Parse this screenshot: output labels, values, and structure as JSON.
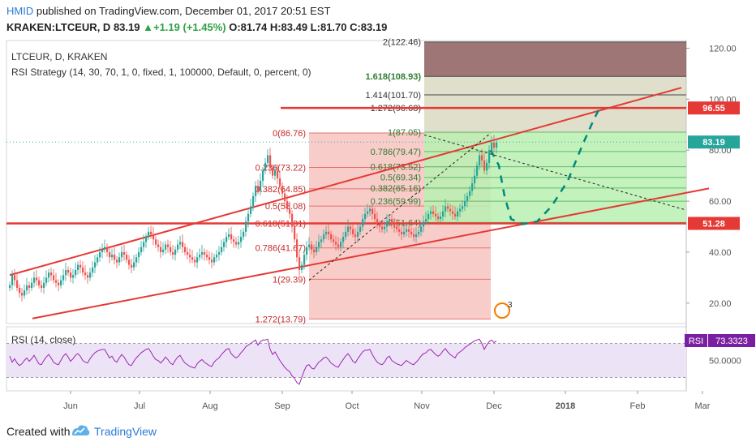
{
  "header": {
    "user": "HMID",
    "published_text": "published on TradingView.com, December 01, 2017 20:51 EST",
    "symbol": "KRAKEN:LTCEUR, D",
    "price": "83.19",
    "change": "+1.19 (+1.45%)",
    "ohlc": "O:81.74 H:83.49 L:81.70 C:83.19"
  },
  "legend": {
    "line1": "LTCEUR, D, KRAKEN",
    "line2": "RSI Strategy (14, 30, 70, 1, 0, fixed, 1, 100000, Default, 0, percent, 0)",
    "rsi_label": "RSI (14, close)"
  },
  "footer": {
    "created_with": "Created with",
    "brand": "TradingView"
  },
  "colors": {
    "candle_up": "#26a69a",
    "candle_down": "#ef5350",
    "trendline": "#e53935",
    "fib_red_fill": "#f8c9c5",
    "fib_green_fill": "#b8f0b1",
    "fib_dark_fill": "#8d5e5e",
    "rsi_line": "#9c27b0",
    "projection": "#00897b",
    "accent": "#2a7bd6"
  },
  "chart_data": [
    {
      "type": "candlestick",
      "title": "LTCEUR, D, KRAKEN",
      "x_ticks": [
        "Jun",
        "Jul",
        "Aug",
        "Sep",
        "Oct",
        "Nov",
        "Dec",
        "2018",
        "Feb",
        "Mar"
      ],
      "y_ticks": [
        "20.00",
        "40.00",
        "60.00",
        "80.00",
        "100.00",
        "120.00"
      ],
      "ylim": [
        12,
        123
      ],
      "last_price": "83.19",
      "horizontal_lines": [
        {
          "label": "96.55",
          "value": 96.55
        },
        {
          "label": "51.28",
          "value": 51.28
        }
      ],
      "fib_retracement_1": [
        {
          "label": "0(86.76)",
          "value": 86.76
        },
        {
          "label": "0.236(73.22)",
          "value": 73.22
        },
        {
          "label": "0.382(64.85)",
          "value": 64.85
        },
        {
          "label": "0.5(58.08)",
          "value": 58.08
        },
        {
          "label": "0.618(51.31)",
          "value": 51.31
        },
        {
          "label": "0.786(41.67)",
          "value": 41.67
        },
        {
          "label": "1(29.39)",
          "value": 29.39
        },
        {
          "label": "1.272(13.79)",
          "value": 13.79
        }
      ],
      "fib_retracement_2": [
        {
          "label": "2(122.46)",
          "value": 122.46
        },
        {
          "label": "1.618(108.93)",
          "value": 108.93
        },
        {
          "label": "1.414(101.70)",
          "value": 101.7
        },
        {
          "label": "1.272(96.68)",
          "value": 96.68
        },
        {
          "label": "1(87.05)",
          "value": 87.05
        },
        {
          "label": "0.786(79.47)",
          "value": 79.47
        },
        {
          "label": "0.618(73.52)",
          "value": 73.52
        },
        {
          "label": "0.5(69.34)",
          "value": 69.34
        },
        {
          "label": "0.382(65.16)",
          "value": 65.16
        },
        {
          "label": "0.236(59.99)",
          "value": 59.99
        },
        {
          "label": "0(51.64)",
          "value": 51.64
        }
      ],
      "price_series": [
        27,
        31,
        29,
        26,
        24,
        23,
        25,
        27,
        26,
        28,
        30,
        29,
        27,
        26,
        28,
        30,
        32,
        31,
        29,
        28,
        27,
        29,
        31,
        33,
        32,
        30,
        31,
        33,
        35,
        34,
        32,
        31,
        30,
        32,
        34,
        36,
        38,
        40,
        41,
        42,
        40,
        38,
        39,
        37,
        36,
        38,
        40,
        39,
        37,
        35,
        34,
        36,
        38,
        40,
        42,
        44,
        46,
        48,
        47,
        45,
        43,
        42,
        40,
        41,
        43,
        42,
        40,
        39,
        41,
        43,
        44,
        42,
        40,
        39,
        38,
        37,
        36,
        38,
        39,
        40,
        39,
        38,
        37,
        36,
        38,
        39,
        40,
        42,
        44,
        46,
        47,
        45,
        44,
        43,
        44,
        46,
        48,
        52,
        55,
        58,
        62,
        66,
        64,
        68,
        72,
        75,
        78,
        73,
        70,
        72,
        69,
        66,
        63,
        60,
        57,
        55,
        50,
        45,
        38,
        33,
        35,
        39,
        42,
        43,
        41,
        40,
        42,
        44,
        45,
        47,
        48,
        47,
        45,
        44,
        43,
        42,
        44,
        46,
        48,
        50,
        49,
        47,
        46,
        48,
        50,
        53,
        55,
        56,
        57,
        55,
        53,
        51,
        50,
        49,
        50,
        52,
        53,
        51,
        50,
        49,
        48,
        47,
        48,
        49,
        48,
        47,
        46,
        47,
        48,
        50,
        52,
        53,
        55,
        56,
        55,
        54,
        53,
        54,
        56,
        58,
        57,
        56,
        55,
        54,
        56,
        57,
        58,
        60,
        62,
        64,
        67,
        70,
        74,
        78,
        76,
        72,
        75,
        80,
        83,
        81,
        83
      ],
      "rsi_series": [
        55,
        48,
        52,
        47,
        44,
        46,
        50,
        53,
        49,
        52,
        56,
        51,
        46,
        45,
        50,
        54,
        57,
        53,
        48,
        46,
        45,
        50,
        55,
        58,
        54,
        49,
        52,
        56,
        58,
        55,
        50,
        48,
        47,
        52,
        56,
        59,
        61,
        62,
        63,
        63,
        58,
        53,
        55,
        50,
        48,
        53,
        57,
        54,
        49,
        45,
        44,
        49,
        53,
        56,
        59,
        61,
        63,
        64,
        60,
        55,
        51,
        50,
        47,
        50,
        54,
        51,
        47,
        45,
        50,
        54,
        56,
        51,
        47,
        45,
        43,
        42,
        41,
        46,
        49,
        51,
        48,
        46,
        44,
        43,
        48,
        51,
        53,
        57,
        60,
        63,
        64,
        58,
        55,
        53,
        55,
        59,
        62,
        66,
        68,
        70,
        72,
        74,
        68,
        72,
        74,
        74,
        75,
        63,
        57,
        60,
        55,
        50,
        46,
        42,
        39,
        37,
        32,
        29,
        24,
        22,
        30,
        38,
        44,
        45,
        41,
        40,
        44,
        48,
        50,
        53,
        54,
        51,
        47,
        45,
        43,
        42,
        47,
        51,
        55,
        58,
        54,
        49,
        47,
        52,
        56,
        60,
        62,
        62,
        63,
        57,
        52,
        48,
        46,
        45,
        48,
        53,
        55,
        50,
        48,
        46,
        45,
        44,
        47,
        50,
        48,
        46,
        45,
        48,
        51,
        55,
        58,
        59,
        62,
        63,
        60,
        57,
        55,
        57,
        61,
        64,
        60,
        57,
        55,
        53,
        58,
        60,
        62,
        65,
        67,
        69,
        71,
        73,
        74,
        75,
        70,
        63,
        68,
        72,
        74,
        71,
        73
      ],
      "rsi_level": 73.3323,
      "rsi_ticks": [
        "50.0000"
      ],
      "rsi_label_value": "73.3323"
    }
  ]
}
